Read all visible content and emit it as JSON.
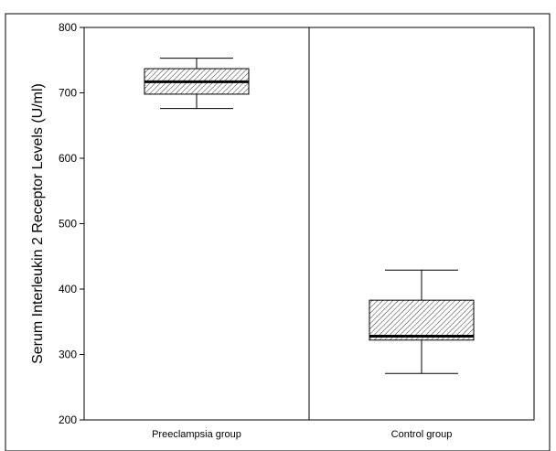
{
  "chart_data": {
    "type": "box",
    "title": "",
    "xlabel": "",
    "ylabel": "Serum Interleukin 2 Receptor Levels (U/ml)",
    "ylim": [
      200,
      800
    ],
    "yticks": [
      200,
      300,
      400,
      500,
      600,
      700,
      800
    ],
    "categories": [
      "Preeclampsia group",
      "Control group"
    ],
    "boxes": [
      {
        "category": "Preeclampsia group",
        "min": 676,
        "q1": 698,
        "median": 717,
        "q3": 737,
        "max": 753
      },
      {
        "category": "Control group",
        "min": 271,
        "q1": 322,
        "median": 328,
        "q3": 383,
        "max": 429
      }
    ],
    "grid": false,
    "legend": "none",
    "box_fill": "hatched",
    "colors": {
      "stroke": "#000000",
      "hatch": "#000000",
      "background": "#ffffff"
    }
  }
}
